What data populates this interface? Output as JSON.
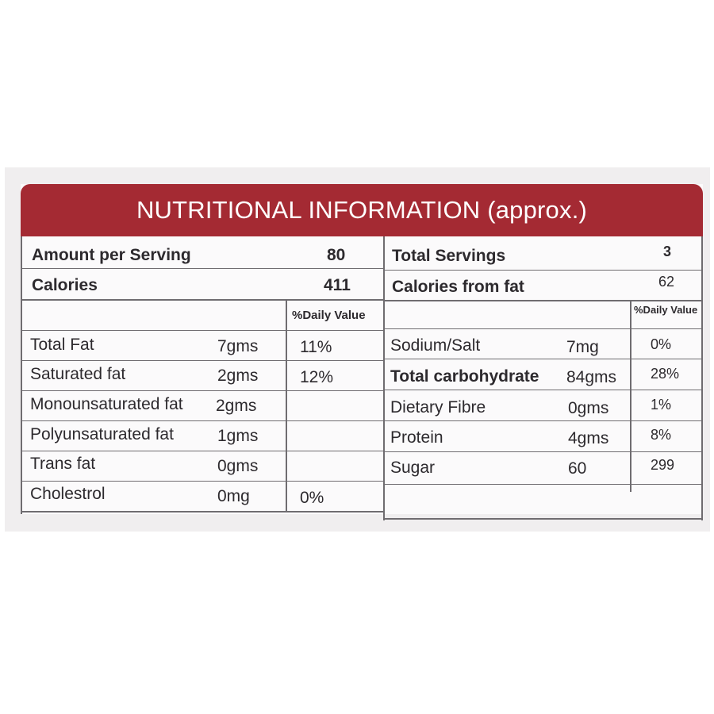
{
  "title": "NUTRITIONAL INFORMATION (approx.)",
  "summary": {
    "amount_per_serving_label": "Amount per Serving",
    "amount_per_serving_value": "80",
    "total_servings_label": "Total Servings",
    "total_servings_value": "3",
    "calories_label": "Calories",
    "calories_value": "411",
    "calories_from_fat_label": "Calories from fat",
    "calories_from_fat_value": "62"
  },
  "daily_value_header": "%Daily Value",
  "left_rows": [
    {
      "name": "Total Fat",
      "amount": "7gms",
      "dv": "11%"
    },
    {
      "name": "Saturated fat",
      "amount": "2gms",
      "dv": "12%"
    },
    {
      "name": "Monounsaturated fat",
      "amount": "2gms",
      "dv": ""
    },
    {
      "name": "Polyunsaturated fat",
      "amount": "1gms",
      "dv": ""
    },
    {
      "name": "Trans fat",
      "amount": "0gms",
      "dv": ""
    },
    {
      "name": "Cholestrol",
      "amount": "0mg",
      "dv": "0%"
    }
  ],
  "right_rows": [
    {
      "name": "Sodium/Salt",
      "amount": "7mg",
      "dv": "0%"
    },
    {
      "name": "Total carbohydrate",
      "amount": "84gms",
      "dv": "28%"
    },
    {
      "name": "Dietary Fibre",
      "amount": "0gms",
      "dv": "1%"
    },
    {
      "name": "Protein",
      "amount": "4gms",
      "dv": "8%"
    },
    {
      "name": "Sugar",
      "amount": "60",
      "dv": "299"
    }
  ],
  "colors": {
    "banner": "#a42a33",
    "text": "#2d2a2e",
    "lines": "#6f6c70"
  }
}
